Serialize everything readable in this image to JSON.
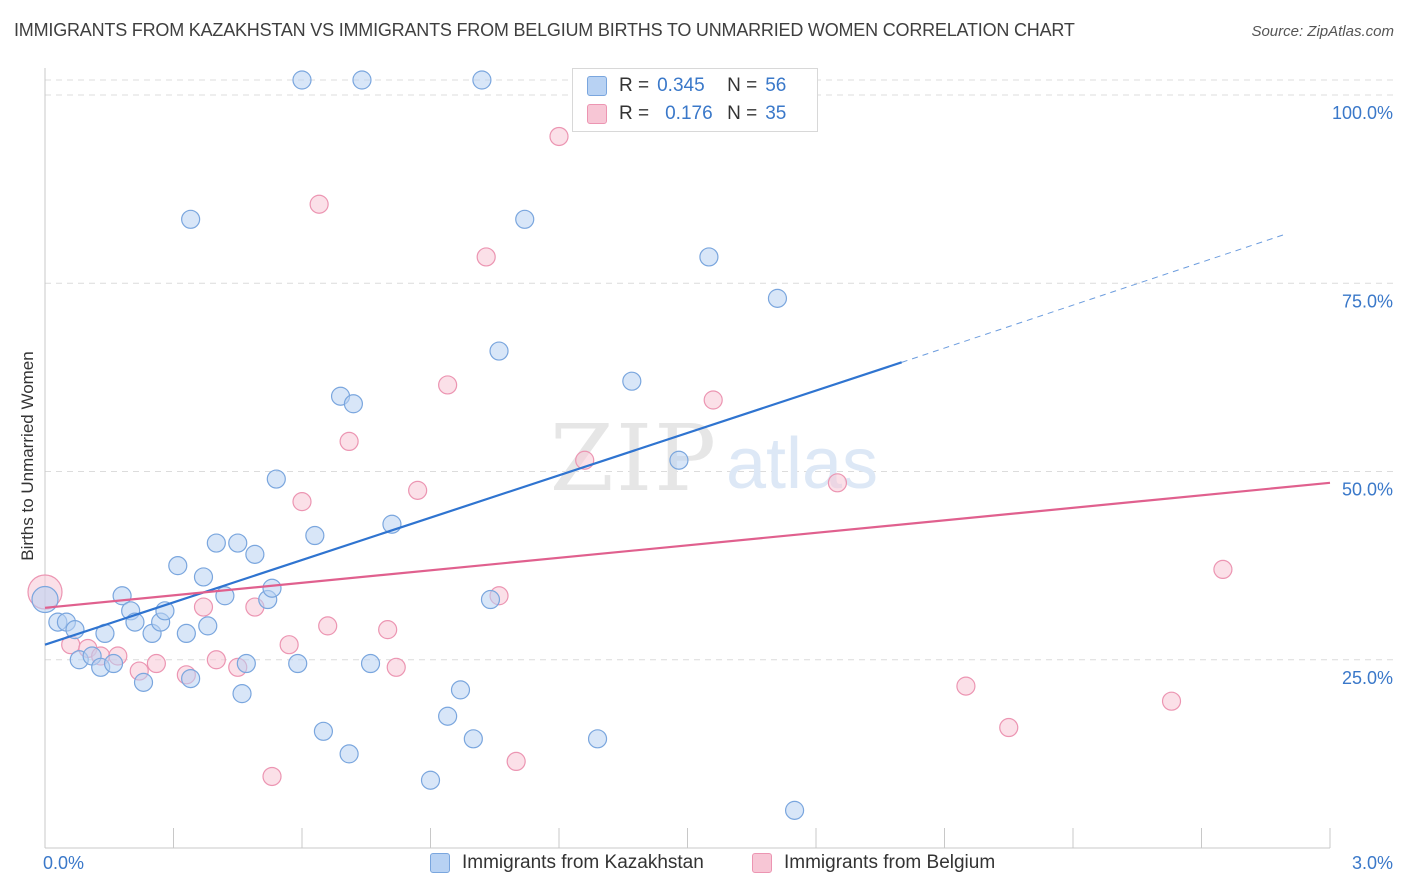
{
  "header": {
    "title": "IMMIGRANTS FROM KAZAKHSTAN VS IMMIGRANTS FROM BELGIUM BIRTHS TO UNMARRIED WOMEN CORRELATION CHART",
    "source": "Source: ZipAtlas.com"
  },
  "watermark": {
    "zip": "ZIP",
    "atlas": "atlas"
  },
  "legend_stats": {
    "kazakhstan": {
      "r_label": "R =",
      "r_value": "0.345",
      "n_label": "N =",
      "n_value": "56"
    },
    "belgium": {
      "r_label": "R =",
      "r_value": "0.176",
      "n_label": "N =",
      "n_value": "35"
    }
  },
  "colors": {
    "kazakhstan_fill": "#b8d2f3",
    "kazakhstan_stroke": "#7aa6de",
    "kazakhstan_line": "#2f74d0",
    "belgium_fill": "#f7c6d5",
    "belgium_stroke": "#ec95b2",
    "belgium_line": "#e0608e",
    "tick_label": "#3a78c9",
    "grid": "#dcdcdc"
  },
  "chart_data": {
    "type": "scatter",
    "title": "IMMIGRANTS FROM KAZAKHSTAN VS IMMIGRANTS FROM BELGIUM BIRTHS TO UNMARRIED WOMEN CORRELATION CHART",
    "xlabel": "",
    "ylabel": "Births to Unmarried Women",
    "xlim": [
      0,
      3.0
    ],
    "ylim": [
      0,
      102
    ],
    "x_tick_labels": [
      "0.0%",
      "3.0%"
    ],
    "y_ticks": [
      25,
      50,
      75,
      100
    ],
    "y_tick_labels": [
      "25.0%",
      "50.0%",
      "75.0%",
      "100.0%"
    ],
    "grid": true,
    "legend_position": "top-center and bottom",
    "series": [
      {
        "name": "Immigrants from Kazakhstan",
        "trend": {
          "x": [
            0.0,
            2.0
          ],
          "y": [
            27.0,
            64.5
          ],
          "dashed_extension_to": [
            2.9,
            81.6
          ]
        },
        "points": [
          [
            0.0,
            33.0
          ],
          [
            0.03,
            30.0
          ],
          [
            0.05,
            30.0
          ],
          [
            0.07,
            29.0
          ],
          [
            0.08,
            25.0
          ],
          [
            0.11,
            25.5
          ],
          [
            0.13,
            24.0
          ],
          [
            0.14,
            28.5
          ],
          [
            0.16,
            24.5
          ],
          [
            0.18,
            33.5
          ],
          [
            0.2,
            31.5
          ],
          [
            0.21,
            30.0
          ],
          [
            0.23,
            22.0
          ],
          [
            0.25,
            28.5
          ],
          [
            0.27,
            30.0
          ],
          [
            0.28,
            31.5
          ],
          [
            0.31,
            37.5
          ],
          [
            0.33,
            28.5
          ],
          [
            0.34,
            22.5
          ],
          [
            0.34,
            83.5
          ],
          [
            0.37,
            36.0
          ],
          [
            0.38,
            29.5
          ],
          [
            0.4,
            40.5
          ],
          [
            0.42,
            33.5
          ],
          [
            0.45,
            40.5
          ],
          [
            0.46,
            20.5
          ],
          [
            0.47,
            24.5
          ],
          [
            0.49,
            39.0
          ],
          [
            0.52,
            33.0
          ],
          [
            0.53,
            34.5
          ],
          [
            0.54,
            49.0
          ],
          [
            0.6,
            102.0
          ],
          [
            0.59,
            24.5
          ],
          [
            0.63,
            41.5
          ],
          [
            0.65,
            15.5
          ],
          [
            0.69,
            60.0
          ],
          [
            0.72,
            59.0
          ],
          [
            0.71,
            12.5
          ],
          [
            0.74,
            102.0
          ],
          [
            0.76,
            24.5
          ],
          [
            0.81,
            43.0
          ],
          [
            0.9,
            9.0
          ],
          [
            0.94,
            17.5
          ],
          [
            0.97,
            21.0
          ],
          [
            1.0,
            14.5
          ],
          [
            1.02,
            102.0
          ],
          [
            1.04,
            33.0
          ],
          [
            1.06,
            66.0
          ],
          [
            1.12,
            83.5
          ],
          [
            1.29,
            14.5
          ],
          [
            1.37,
            62.0
          ],
          [
            1.49,
            102.0
          ],
          [
            1.55,
            78.5
          ],
          [
            1.71,
            73.0
          ],
          [
            1.75,
            5.0
          ],
          [
            1.48,
            51.5
          ]
        ]
      },
      {
        "name": "Immigrants from Belgium",
        "trend": {
          "x": [
            0.0,
            3.0
          ],
          "y": [
            31.9,
            48.5
          ]
        },
        "points": [
          [
            0.0,
            34.0
          ],
          [
            0.06,
            27.0
          ],
          [
            0.1,
            26.5
          ],
          [
            0.13,
            25.5
          ],
          [
            0.17,
            25.5
          ],
          [
            0.22,
            23.5
          ],
          [
            0.26,
            24.5
          ],
          [
            0.33,
            23.0
          ],
          [
            0.37,
            32.0
          ],
          [
            0.4,
            25.0
          ],
          [
            0.45,
            24.0
          ],
          [
            0.49,
            32.0
          ],
          [
            0.53,
            9.5
          ],
          [
            0.57,
            27.0
          ],
          [
            0.6,
            46.0
          ],
          [
            0.64,
            85.5
          ],
          [
            0.66,
            29.5
          ],
          [
            0.71,
            54.0
          ],
          [
            0.8,
            29.0
          ],
          [
            0.82,
            24.0
          ],
          [
            0.87,
            47.5
          ],
          [
            0.94,
            61.5
          ],
          [
            1.03,
            78.5
          ],
          [
            1.06,
            33.5
          ],
          [
            1.1,
            11.5
          ],
          [
            1.2,
            94.5
          ],
          [
            1.26,
            51.5
          ],
          [
            1.56,
            59.5
          ],
          [
            1.63,
            102.0
          ],
          [
            1.73,
            102.0
          ],
          [
            1.85,
            48.5
          ],
          [
            2.15,
            21.5
          ],
          [
            2.25,
            16.0
          ],
          [
            2.63,
            19.5
          ],
          [
            2.75,
            37.0
          ]
        ]
      }
    ]
  },
  "bottom_legend": {
    "kazakhstan": "Immigrants from Kazakhstan",
    "belgium": "Immigrants from Belgium"
  }
}
